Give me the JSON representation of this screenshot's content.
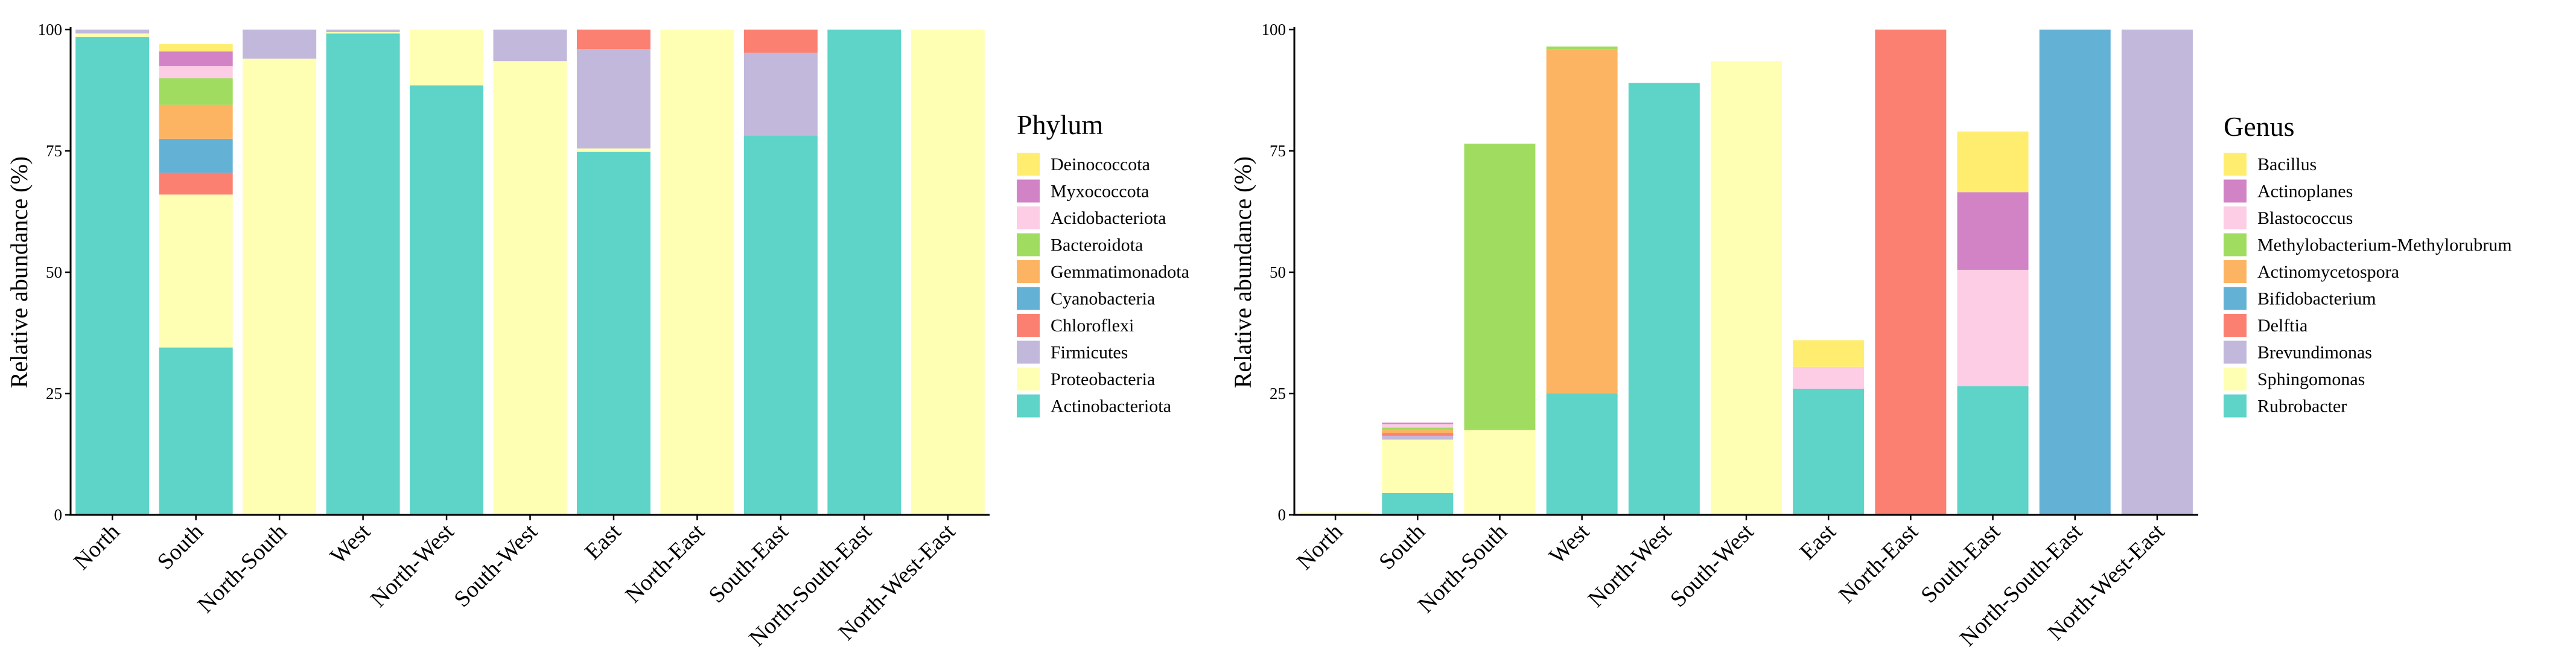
{
  "chart_data": [
    {
      "type": "bar",
      "stacked": true,
      "categories": [
        "North",
        "South",
        "North-South",
        "West",
        "North-West",
        "South-West",
        "East",
        "North-East",
        "South-East",
        "North-South-East",
        "North-West-East"
      ],
      "ylabel": "Relative abundance (%)",
      "ylim": [
        0,
        100
      ],
      "yticks": [
        "0",
        "25",
        "50",
        "75",
        "100"
      ],
      "legend_title": "Phylum",
      "legend_position": "right",
      "series": [
        {
          "name": "Actinobacteriota",
          "color": "#5ed3c8",
          "values": [
            98.5,
            34.5,
            0,
            99.2,
            88.5,
            0,
            74.8,
            0,
            78.2,
            100,
            0
          ]
        },
        {
          "name": "Proteobacteria",
          "color": "#ffffb3",
          "values": [
            0.7,
            31.5,
            94,
            0.3,
            11.5,
            93.5,
            0.7,
            100,
            0,
            0,
            100
          ]
        },
        {
          "name": "Firmicutes",
          "color": "#c2b8db",
          "values": [
            0.8,
            0,
            6,
            0.5,
            0,
            6.5,
            20.5,
            0,
            17,
            0,
            0
          ]
        },
        {
          "name": "Chloroflexi",
          "color": "#fb8072",
          "values": [
            0,
            4.5,
            0,
            0,
            0,
            0,
            4,
            0,
            4.8,
            0,
            0
          ]
        },
        {
          "name": "Cyanobacteria",
          "color": "#64b1d6",
          "values": [
            0,
            7,
            0,
            0,
            0,
            0,
            0,
            0,
            0,
            0,
            0
          ]
        },
        {
          "name": "Gemmatimonadota",
          "color": "#fdb462",
          "values": [
            0,
            7,
            0,
            0,
            0,
            0,
            0,
            0,
            0,
            0,
            0
          ]
        },
        {
          "name": "Bacteroidota",
          "color": "#a0dc5f",
          "values": [
            0,
            5.5,
            0,
            0,
            0,
            0,
            0,
            0,
            0,
            0,
            0
          ]
        },
        {
          "name": "Acidobacteriota",
          "color": "#fccde5",
          "values": [
            0,
            2.5,
            0,
            0,
            0,
            0,
            0,
            0,
            0,
            0,
            0
          ]
        },
        {
          "name": "Myxococcota",
          "color": "#d283c6",
          "values": [
            0,
            3,
            0,
            0,
            0,
            0,
            0,
            0,
            0,
            0,
            0
          ]
        },
        {
          "name": "Deinococcota",
          "color": "#ffed6f",
          "values": [
            0,
            1.5,
            0,
            0,
            0,
            0,
            0,
            0,
            0,
            0,
            0
          ]
        }
      ]
    },
    {
      "type": "bar",
      "stacked": true,
      "categories": [
        "North",
        "South",
        "North-South",
        "West",
        "North-West",
        "South-West",
        "East",
        "North-East",
        "South-East",
        "North-South-East",
        "North-West-East"
      ],
      "ylabel": "Relative abundance (%)",
      "ylim": [
        0,
        100
      ],
      "yticks": [
        "0",
        "25",
        "50",
        "75",
        "100"
      ],
      "legend_title": "Genus",
      "legend_position": "right",
      "series": [
        {
          "name": "Rubrobacter",
          "color": "#5ed3c8",
          "values": [
            0,
            4.5,
            0,
            25,
            89,
            0,
            26,
            0,
            26.5,
            0,
            0
          ]
        },
        {
          "name": "Sphingomonas",
          "color": "#ffffb3",
          "values": [
            0.5,
            11,
            17.5,
            0,
            0,
            93.5,
            0,
            0,
            0,
            0,
            0
          ]
        },
        {
          "name": "Brevundimonas",
          "color": "#c2b8db",
          "values": [
            0,
            0.8,
            0,
            0,
            0,
            0,
            0,
            0,
            0,
            0,
            100
          ]
        },
        {
          "name": "Delftia",
          "color": "#fb8072",
          "values": [
            0,
            0.6,
            0,
            0,
            0,
            0,
            0,
            100,
            0,
            0,
            0
          ]
        },
        {
          "name": "Bifidobacterium",
          "color": "#64b1d6",
          "values": [
            0,
            0,
            0,
            0,
            0,
            0,
            0,
            0,
            0,
            100,
            0
          ]
        },
        {
          "name": "Actinomycetospora",
          "color": "#fdb462",
          "values": [
            0,
            0.6,
            0,
            71,
            0,
            0,
            0,
            0,
            0,
            0,
            0
          ]
        },
        {
          "name": "Methylobacterium-Methylorubrum",
          "color": "#a0dc5f",
          "values": [
            0,
            0.5,
            59,
            0.5,
            0,
            0,
            0,
            0,
            0,
            0,
            0
          ]
        },
        {
          "name": "Blastococcus",
          "color": "#fccde5",
          "values": [
            0,
            0.7,
            0,
            0,
            0,
            0,
            4.5,
            0,
            24,
            0,
            0
          ]
        },
        {
          "name": "Actinoplanes",
          "color": "#d283c6",
          "values": [
            0,
            0.3,
            0,
            0,
            0,
            0,
            0,
            0,
            16,
            0,
            0
          ]
        },
        {
          "name": "Bacillus",
          "color": "#ffed6f",
          "values": [
            0,
            0,
            0,
            0,
            0,
            0,
            5.5,
            0,
            12.5,
            0,
            0
          ]
        }
      ]
    }
  ]
}
